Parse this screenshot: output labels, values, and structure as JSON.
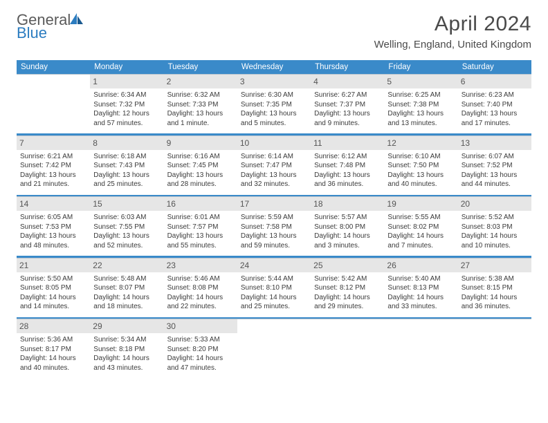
{
  "brand": {
    "word1": "General",
    "word2": "Blue"
  },
  "title": "April 2024",
  "location": "Welling, England, United Kingdom",
  "weekday_bg": "#3a8ac9",
  "daynum_bg": "#e6e6e6",
  "weekdays": [
    "Sunday",
    "Monday",
    "Tuesday",
    "Wednesday",
    "Thursday",
    "Friday",
    "Saturday"
  ],
  "weeks": [
    [
      {
        "num": "",
        "sunrise": "",
        "sunset": "",
        "daylight1": "",
        "daylight2": ""
      },
      {
        "num": "1",
        "sunrise": "Sunrise: 6:34 AM",
        "sunset": "Sunset: 7:32 PM",
        "daylight1": "Daylight: 12 hours",
        "daylight2": "and 57 minutes."
      },
      {
        "num": "2",
        "sunrise": "Sunrise: 6:32 AM",
        "sunset": "Sunset: 7:33 PM",
        "daylight1": "Daylight: 13 hours",
        "daylight2": "and 1 minute."
      },
      {
        "num": "3",
        "sunrise": "Sunrise: 6:30 AM",
        "sunset": "Sunset: 7:35 PM",
        "daylight1": "Daylight: 13 hours",
        "daylight2": "and 5 minutes."
      },
      {
        "num": "4",
        "sunrise": "Sunrise: 6:27 AM",
        "sunset": "Sunset: 7:37 PM",
        "daylight1": "Daylight: 13 hours",
        "daylight2": "and 9 minutes."
      },
      {
        "num": "5",
        "sunrise": "Sunrise: 6:25 AM",
        "sunset": "Sunset: 7:38 PM",
        "daylight1": "Daylight: 13 hours",
        "daylight2": "and 13 minutes."
      },
      {
        "num": "6",
        "sunrise": "Sunrise: 6:23 AM",
        "sunset": "Sunset: 7:40 PM",
        "daylight1": "Daylight: 13 hours",
        "daylight2": "and 17 minutes."
      }
    ],
    [
      {
        "num": "7",
        "sunrise": "Sunrise: 6:21 AM",
        "sunset": "Sunset: 7:42 PM",
        "daylight1": "Daylight: 13 hours",
        "daylight2": "and 21 minutes."
      },
      {
        "num": "8",
        "sunrise": "Sunrise: 6:18 AM",
        "sunset": "Sunset: 7:43 PM",
        "daylight1": "Daylight: 13 hours",
        "daylight2": "and 25 minutes."
      },
      {
        "num": "9",
        "sunrise": "Sunrise: 6:16 AM",
        "sunset": "Sunset: 7:45 PM",
        "daylight1": "Daylight: 13 hours",
        "daylight2": "and 28 minutes."
      },
      {
        "num": "10",
        "sunrise": "Sunrise: 6:14 AM",
        "sunset": "Sunset: 7:47 PM",
        "daylight1": "Daylight: 13 hours",
        "daylight2": "and 32 minutes."
      },
      {
        "num": "11",
        "sunrise": "Sunrise: 6:12 AM",
        "sunset": "Sunset: 7:48 PM",
        "daylight1": "Daylight: 13 hours",
        "daylight2": "and 36 minutes."
      },
      {
        "num": "12",
        "sunrise": "Sunrise: 6:10 AM",
        "sunset": "Sunset: 7:50 PM",
        "daylight1": "Daylight: 13 hours",
        "daylight2": "and 40 minutes."
      },
      {
        "num": "13",
        "sunrise": "Sunrise: 6:07 AM",
        "sunset": "Sunset: 7:52 PM",
        "daylight1": "Daylight: 13 hours",
        "daylight2": "and 44 minutes."
      }
    ],
    [
      {
        "num": "14",
        "sunrise": "Sunrise: 6:05 AM",
        "sunset": "Sunset: 7:53 PM",
        "daylight1": "Daylight: 13 hours",
        "daylight2": "and 48 minutes."
      },
      {
        "num": "15",
        "sunrise": "Sunrise: 6:03 AM",
        "sunset": "Sunset: 7:55 PM",
        "daylight1": "Daylight: 13 hours",
        "daylight2": "and 52 minutes."
      },
      {
        "num": "16",
        "sunrise": "Sunrise: 6:01 AM",
        "sunset": "Sunset: 7:57 PM",
        "daylight1": "Daylight: 13 hours",
        "daylight2": "and 55 minutes."
      },
      {
        "num": "17",
        "sunrise": "Sunrise: 5:59 AM",
        "sunset": "Sunset: 7:58 PM",
        "daylight1": "Daylight: 13 hours",
        "daylight2": "and 59 minutes."
      },
      {
        "num": "18",
        "sunrise": "Sunrise: 5:57 AM",
        "sunset": "Sunset: 8:00 PM",
        "daylight1": "Daylight: 14 hours",
        "daylight2": "and 3 minutes."
      },
      {
        "num": "19",
        "sunrise": "Sunrise: 5:55 AM",
        "sunset": "Sunset: 8:02 PM",
        "daylight1": "Daylight: 14 hours",
        "daylight2": "and 7 minutes."
      },
      {
        "num": "20",
        "sunrise": "Sunrise: 5:52 AM",
        "sunset": "Sunset: 8:03 PM",
        "daylight1": "Daylight: 14 hours",
        "daylight2": "and 10 minutes."
      }
    ],
    [
      {
        "num": "21",
        "sunrise": "Sunrise: 5:50 AM",
        "sunset": "Sunset: 8:05 PM",
        "daylight1": "Daylight: 14 hours",
        "daylight2": "and 14 minutes."
      },
      {
        "num": "22",
        "sunrise": "Sunrise: 5:48 AM",
        "sunset": "Sunset: 8:07 PM",
        "daylight1": "Daylight: 14 hours",
        "daylight2": "and 18 minutes."
      },
      {
        "num": "23",
        "sunrise": "Sunrise: 5:46 AM",
        "sunset": "Sunset: 8:08 PM",
        "daylight1": "Daylight: 14 hours",
        "daylight2": "and 22 minutes."
      },
      {
        "num": "24",
        "sunrise": "Sunrise: 5:44 AM",
        "sunset": "Sunset: 8:10 PM",
        "daylight1": "Daylight: 14 hours",
        "daylight2": "and 25 minutes."
      },
      {
        "num": "25",
        "sunrise": "Sunrise: 5:42 AM",
        "sunset": "Sunset: 8:12 PM",
        "daylight1": "Daylight: 14 hours",
        "daylight2": "and 29 minutes."
      },
      {
        "num": "26",
        "sunrise": "Sunrise: 5:40 AM",
        "sunset": "Sunset: 8:13 PM",
        "daylight1": "Daylight: 14 hours",
        "daylight2": "and 33 minutes."
      },
      {
        "num": "27",
        "sunrise": "Sunrise: 5:38 AM",
        "sunset": "Sunset: 8:15 PM",
        "daylight1": "Daylight: 14 hours",
        "daylight2": "and 36 minutes."
      }
    ],
    [
      {
        "num": "28",
        "sunrise": "Sunrise: 5:36 AM",
        "sunset": "Sunset: 8:17 PM",
        "daylight1": "Daylight: 14 hours",
        "daylight2": "and 40 minutes."
      },
      {
        "num": "29",
        "sunrise": "Sunrise: 5:34 AM",
        "sunset": "Sunset: 8:18 PM",
        "daylight1": "Daylight: 14 hours",
        "daylight2": "and 43 minutes."
      },
      {
        "num": "30",
        "sunrise": "Sunrise: 5:33 AM",
        "sunset": "Sunset: 8:20 PM",
        "daylight1": "Daylight: 14 hours",
        "daylight2": "and 47 minutes."
      },
      {
        "num": "",
        "sunrise": "",
        "sunset": "",
        "daylight1": "",
        "daylight2": ""
      },
      {
        "num": "",
        "sunrise": "",
        "sunset": "",
        "daylight1": "",
        "daylight2": ""
      },
      {
        "num": "",
        "sunrise": "",
        "sunset": "",
        "daylight1": "",
        "daylight2": ""
      },
      {
        "num": "",
        "sunrise": "",
        "sunset": "",
        "daylight1": "",
        "daylight2": ""
      }
    ]
  ]
}
